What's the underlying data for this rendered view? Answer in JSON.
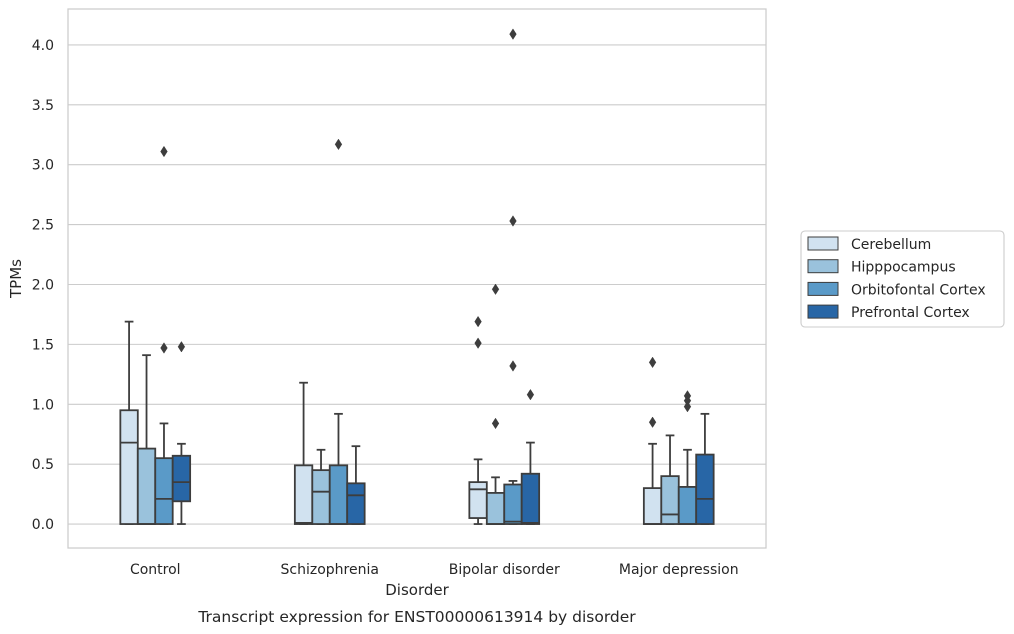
{
  "chart_data": {
    "type": "box",
    "caption": "Transcript expression for ENST00000613914 by disorder",
    "xlabel": "Disorder",
    "ylabel": "TPMs",
    "ylim": [
      -0.2,
      4.3
    ],
    "yticks": [
      0.0,
      0.5,
      1.0,
      1.5,
      2.0,
      2.5,
      3.0,
      3.5,
      4.0
    ],
    "ytick_labels": [
      "0.0",
      "0.5",
      "1.0",
      "1.5",
      "2.0",
      "2.5",
      "3.0",
      "3.5",
      "4.0"
    ],
    "grid": "horizontal",
    "legend_position": "right",
    "categories": [
      "Control",
      "Schizophrenia",
      "Bipolar disorder",
      "Major depression"
    ],
    "series": [
      {
        "name": "Cerebellum",
        "color": "#d1e2f0",
        "boxes": [
          {
            "q1": 0.0,
            "median": 0.68,
            "q3": 0.95,
            "whislo": 0.0,
            "whishi": 1.69,
            "fliers": []
          },
          {
            "q1": 0.0,
            "median": 0.01,
            "q3": 0.49,
            "whislo": 0.0,
            "whishi": 1.18,
            "fliers": []
          },
          {
            "q1": 0.05,
            "median": 0.29,
            "q3": 0.35,
            "whislo": 0.0,
            "whishi": 0.54,
            "fliers": [
              1.69,
              1.51
            ]
          },
          {
            "q1": 0.0,
            "median": 0.0,
            "q3": 0.3,
            "whislo": 0.0,
            "whishi": 0.67,
            "fliers": [
              1.35,
              0.85
            ]
          }
        ]
      },
      {
        "name": "Hipppocampus",
        "color": "#9ac2dc",
        "boxes": [
          {
            "q1": 0.0,
            "median": 0.0,
            "q3": 0.63,
            "whislo": 0.0,
            "whishi": 1.41,
            "fliers": []
          },
          {
            "q1": 0.0,
            "median": 0.27,
            "q3": 0.45,
            "whislo": 0.0,
            "whishi": 0.62,
            "fliers": []
          },
          {
            "q1": 0.0,
            "median": 0.0,
            "q3": 0.26,
            "whislo": 0.0,
            "whishi": 0.39,
            "fliers": [
              1.96,
              0.84
            ]
          },
          {
            "q1": 0.0,
            "median": 0.08,
            "q3": 0.4,
            "whislo": 0.0,
            "whishi": 0.74,
            "fliers": []
          }
        ]
      },
      {
        "name": "Orbitofontal Cortex",
        "color": "#5a9ac8",
        "boxes": [
          {
            "q1": 0.0,
            "median": 0.21,
            "q3": 0.55,
            "whislo": 0.0,
            "whishi": 0.84,
            "fliers": [
              3.11,
              1.47
            ]
          },
          {
            "q1": 0.0,
            "median": 0.0,
            "q3": 0.49,
            "whislo": 0.0,
            "whishi": 0.92,
            "fliers": [
              3.17
            ]
          },
          {
            "q1": 0.0,
            "median": 0.02,
            "q3": 0.33,
            "whislo": 0.0,
            "whishi": 0.36,
            "fliers": [
              4.09,
              2.53,
              1.32
            ]
          },
          {
            "q1": 0.0,
            "median": 0.0,
            "q3": 0.31,
            "whislo": 0.0,
            "whishi": 0.62,
            "fliers": [
              1.07,
              1.03,
              0.98
            ]
          }
        ]
      },
      {
        "name": "Prefrontal Cortex",
        "color": "#2866a6",
        "boxes": [
          {
            "q1": 0.19,
            "median": 0.35,
            "q3": 0.57,
            "whislo": 0.0,
            "whishi": 0.67,
            "fliers": [
              1.48
            ]
          },
          {
            "q1": 0.0,
            "median": 0.24,
            "q3": 0.34,
            "whislo": 0.0,
            "whishi": 0.65,
            "fliers": []
          },
          {
            "q1": 0.0,
            "median": 0.01,
            "q3": 0.42,
            "whislo": 0.0,
            "whishi": 0.68,
            "fliers": [
              1.08
            ]
          },
          {
            "q1": 0.0,
            "median": 0.21,
            "q3": 0.58,
            "whislo": 0.0,
            "whishi": 0.92,
            "fliers": []
          }
        ]
      }
    ]
  }
}
